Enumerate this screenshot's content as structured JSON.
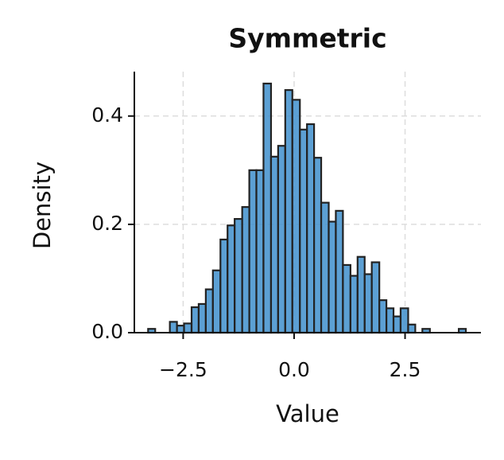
{
  "chart_data": {
    "type": "histogram",
    "title": "Symmetric",
    "x_label": "Value",
    "y_label": "Density",
    "bins": [
      -3.29,
      -3.13,
      -2.96,
      -2.8,
      -2.64,
      -2.48,
      -2.31,
      -2.15,
      -1.99,
      -1.83,
      -1.66,
      -1.5,
      -1.34,
      -1.17,
      -1.01,
      -0.85,
      -0.69,
      -0.52,
      -0.36,
      -0.2,
      -0.04,
      0.13,
      0.29,
      0.45,
      0.61,
      0.78,
      0.94,
      1.1,
      1.27,
      1.43,
      1.59,
      1.75,
      1.92,
      2.08,
      2.24,
      2.4,
      2.57,
      2.73,
      2.89,
      3.06,
      3.22,
      3.38,
      3.54,
      3.71,
      3.87
    ],
    "values": [
      0.007,
      0,
      0,
      0.02,
      0.013,
      0.017,
      0.047,
      0.053,
      0.08,
      0.115,
      0.172,
      0.198,
      0.21,
      0.232,
      0.3,
      0.3,
      0.46,
      0.325,
      0.345,
      0.448,
      0.43,
      0.375,
      0.385,
      0.323,
      0.24,
      0.205,
      0.225,
      0.125,
      0.105,
      0.14,
      0.108,
      0.13,
      0.06,
      0.045,
      0.03,
      0.045,
      0.015,
      0,
      0.007,
      0,
      0,
      0,
      0,
      0.007
    ],
    "color": "#3f8fcc",
    "edgecolor": "#222222",
    "xlim": [
      -3.6,
      4.21
    ],
    "ylim": [
      0,
      0.482
    ],
    "xticks": [
      {
        "value": -2.5,
        "label": "−2.5"
      },
      {
        "value": 0,
        "label": "0.0"
      },
      2.5
    ],
    "yticks": [
      {
        "value": 0,
        "label": "0.0"
      },
      0.2,
      0.4
    ],
    "grid": true
  }
}
